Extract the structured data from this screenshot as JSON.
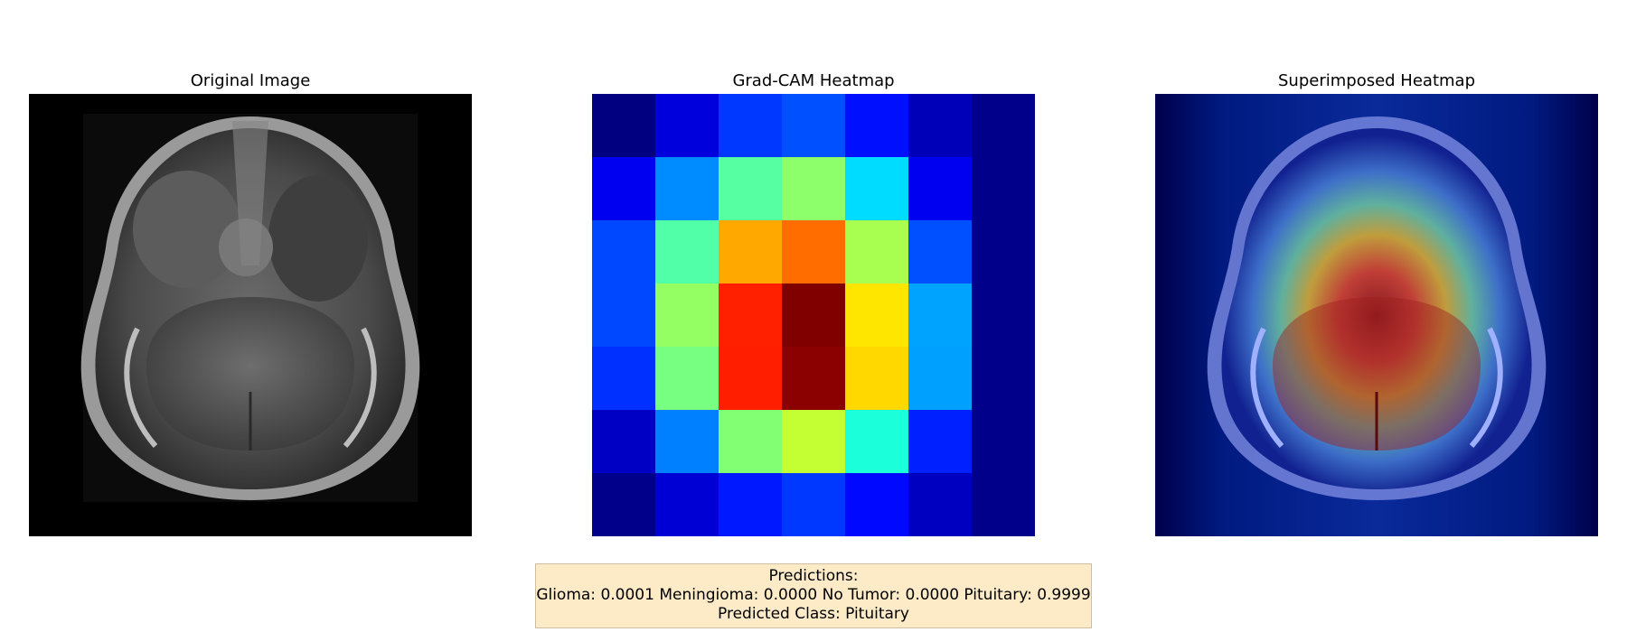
{
  "panels": {
    "original": {
      "title": "Original Image"
    },
    "heatmap": {
      "title": "Grad-CAM Heatmap",
      "grid": [
        [
          "#000080",
          "#0000dc",
          "#0038ff",
          "#0050ff",
          "#0010ff",
          "#0000b8",
          "#00008a"
        ],
        [
          "#0000f0",
          "#008cff",
          "#55ffa2",
          "#8cff6b",
          "#00dcff",
          "#0000f0",
          "#00008a"
        ],
        [
          "#0048ff",
          "#50ffa8",
          "#ffa800",
          "#ff6c00",
          "#a8ff50",
          "#0050ff",
          "#00008a"
        ],
        [
          "#0048ff",
          "#93ff63",
          "#ff2000",
          "#800000",
          "#ffe600",
          "#00a4ff",
          "#00008a"
        ],
        [
          "#0030ff",
          "#76ff80",
          "#ff1e00",
          "#8b0000",
          "#ffd800",
          "#00a0ff",
          "#00008a"
        ],
        [
          "#0000c4",
          "#0080ff",
          "#83ff74",
          "#c4ff33",
          "#1cffdb",
          "#0020ff",
          "#00008a"
        ],
        [
          "#00008a",
          "#0000d4",
          "#0018ff",
          "#0038ff",
          "#0008ff",
          "#0000c0",
          "#00008a"
        ]
      ]
    },
    "superimposed": {
      "title": "Superimposed Heatmap"
    }
  },
  "predictions": {
    "heading": "Predictions:",
    "scores_line": "Glioma: 0.0001 Meningioma: 0.0000 No Tumor: 0.0000 Pituitary: 0.9999",
    "predicted_class_line": "Predicted Class: Pituitary"
  }
}
